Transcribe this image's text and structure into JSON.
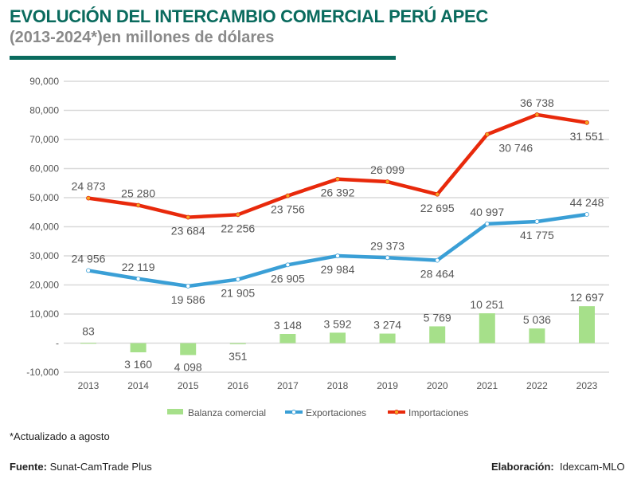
{
  "header": {
    "title": "EVOLUCIÓN DEL INTERCAMBIO COMERCIAL PERÚ APEC",
    "subtitle": "(2013-2024*)en millones de dólares"
  },
  "chart_data": {
    "type": "line",
    "stacked_lines": true,
    "categories": [
      "2013",
      "2014",
      "2015",
      "2016",
      "2017",
      "2018",
      "2019",
      "2020",
      "2021",
      "2022",
      "2023"
    ],
    "series": [
      {
        "name": "Balanza comercial",
        "kind": "bar",
        "color": "#a6e08a",
        "values": [
          83,
          -3160,
          -4098,
          -351,
          3148,
          3592,
          3274,
          5769,
          10251,
          5036,
          12697
        ],
        "labels": [
          "83",
          "3 160",
          "4 098",
          "351",
          "3 148",
          "3 592",
          "3 274",
          "5 769",
          "10 251",
          "5 036",
          "12 697"
        ]
      },
      {
        "name": "Exportaciones",
        "kind": "line",
        "color": "#3a9fd6",
        "values": [
          24956,
          22119,
          19586,
          21905,
          26905,
          29984,
          29373,
          28464,
          40997,
          41775,
          44248
        ],
        "labels": [
          "24 956",
          "22 119",
          "19 586",
          "21 905",
          "26 905",
          "29 984",
          "29 373",
          "28 464",
          "40 997",
          "41 775",
          "44 248"
        ]
      },
      {
        "name": "Importaciones",
        "kind": "line",
        "color": "#e8290b",
        "marker_color": "#f5a623",
        "values": [
          24873,
          25280,
          23684,
          22256,
          23756,
          26392,
          26099,
          22695,
          30746,
          36738,
          31551
        ],
        "labels": [
          "24 873",
          "25 280",
          "23 684",
          "22 256",
          "23 756",
          "26 392",
          "26 099",
          "22 695",
          "30 746",
          "36 738",
          "31 551"
        ]
      }
    ],
    "yticks": [
      90000,
      80000,
      70000,
      60000,
      50000,
      40000,
      30000,
      20000,
      10000,
      0,
      -10000
    ],
    "ytick_labels": [
      "90,000",
      "80,000",
      "70,000",
      "60,000",
      "50,000",
      "40,000",
      "30,000",
      "20,000",
      "10,000",
      "-",
      "-10,000"
    ],
    "ylim": [
      -10000,
      90000
    ],
    "grid": true,
    "legend": "bottom"
  },
  "footer": {
    "note": "*Actualizado a agosto",
    "source_label": "Fuente:",
    "source": "Sunat-CamTrade Plus",
    "credit_label": "Elaboración:",
    "credit": "Idexcam-MLO"
  }
}
